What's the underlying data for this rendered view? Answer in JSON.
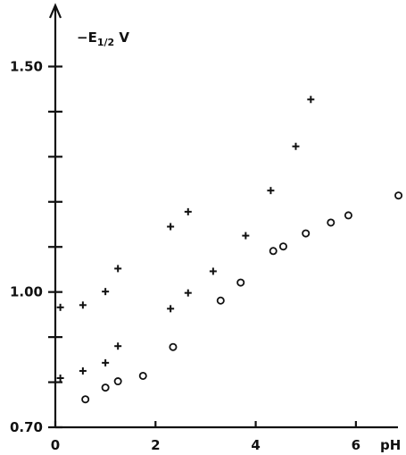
{
  "chart_data": {
    "type": "scatter",
    "title": "",
    "xlabel": "pH",
    "ylabel": "−E",
    "ylabel_subscript": "1/2",
    "ylabel_unit": " V",
    "xlim": [
      0,
      7.0
    ],
    "ylim": [
      0.7,
      1.6
    ],
    "x_ticks": [
      0,
      2,
      4,
      6
    ],
    "x_tick_labels": [
      "0",
      "2",
      "4",
      "6"
    ],
    "y_ticks": [
      0.7,
      0.8,
      0.9,
      1.0,
      1.1,
      1.2,
      1.3,
      1.4,
      1.5
    ],
    "y_tick_labels": [
      "0.70",
      "",
      "",
      "1.00",
      "",
      "",
      "",
      "",
      "1.50"
    ],
    "grid": false,
    "legend": "none",
    "series": [
      {
        "marker": "plus",
        "x": [
          0.1,
          0.55,
          1.0,
          1.25,
          2.3,
          2.65
        ],
        "y": [
          0.966,
          0.971,
          1.001,
          1.052,
          1.145,
          1.178
        ]
      },
      {
        "marker": "plus",
        "x": [
          0.1,
          0.55,
          1.0,
          1.25,
          2.3,
          2.65,
          3.15,
          3.8,
          4.3,
          4.8,
          5.1
        ],
        "y": [
          0.809,
          0.825,
          0.843,
          0.88,
          0.963,
          0.998,
          1.046,
          1.125,
          1.225,
          1.323,
          1.427
        ]
      },
      {
        "marker": "circle",
        "x": [
          0.6,
          1.0,
          1.25,
          1.75,
          2.35,
          3.3,
          3.7,
          4.35,
          4.55,
          5.0,
          5.5,
          5.85,
          6.85
        ],
        "y": [
          0.762,
          0.788,
          0.802,
          0.814,
          0.878,
          0.981,
          1.021,
          1.091,
          1.101,
          1.13,
          1.154,
          1.17,
          1.214
        ]
      }
    ]
  }
}
